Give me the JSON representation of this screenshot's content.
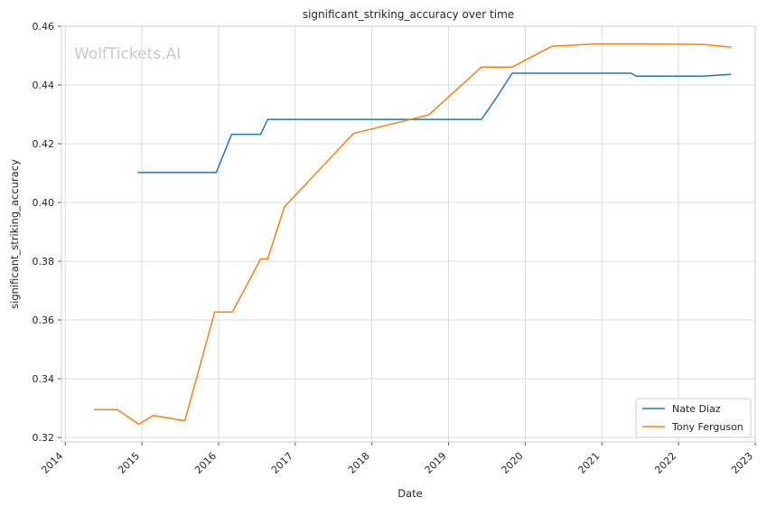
{
  "chart_data": {
    "type": "line",
    "title": "significant_striking_accuracy over time",
    "xlabel": "Date",
    "ylabel": "significant_striking_accuracy",
    "watermark": "WolfTickets.AI",
    "xlim": [
      2013.95,
      2023.0
    ],
    "ylim": [
      0.3185,
      0.46
    ],
    "x_ticks": [
      2014,
      2015,
      2016,
      2017,
      2018,
      2019,
      2020,
      2021,
      2022,
      2023
    ],
    "x_tick_labels": [
      "2014",
      "2015",
      "2016",
      "2017",
      "2018",
      "2019",
      "2020",
      "2021",
      "2022",
      "2023"
    ],
    "y_ticks": [
      0.32,
      0.34,
      0.36,
      0.38,
      0.4,
      0.42,
      0.44,
      0.46
    ],
    "y_tick_labels": [
      "0.32",
      "0.34",
      "0.36",
      "0.38",
      "0.40",
      "0.42",
      "0.44",
      "0.46"
    ],
    "grid": true,
    "legend_position": "bottom-right",
    "series": [
      {
        "name": "Nate Diaz",
        "color": "#1f77b4",
        "points": [
          [
            2014.95,
            0.4102
          ],
          [
            2015.97,
            0.4102
          ],
          [
            2016.17,
            0.4232
          ],
          [
            2016.55,
            0.4232
          ],
          [
            2016.64,
            0.4283
          ],
          [
            2019.43,
            0.4283
          ],
          [
            2019.62,
            0.4355
          ],
          [
            2019.83,
            0.444
          ],
          [
            2021.38,
            0.444
          ],
          [
            2021.45,
            0.443
          ],
          [
            2022.33,
            0.443
          ],
          [
            2022.49,
            0.4433
          ],
          [
            2022.68,
            0.4436
          ]
        ]
      },
      {
        "name": "Tony Ferguson",
        "color": "#ff7f0e",
        "points": [
          [
            2014.38,
            0.3295
          ],
          [
            2014.68,
            0.3295
          ],
          [
            2014.96,
            0.3245
          ],
          [
            2015.15,
            0.3275
          ],
          [
            2015.56,
            0.3257
          ],
          [
            2015.95,
            0.3627
          ],
          [
            2016.18,
            0.3627
          ],
          [
            2016.55,
            0.3808
          ],
          [
            2016.64,
            0.3808
          ],
          [
            2016.86,
            0.3985
          ],
          [
            2017.76,
            0.4235
          ],
          [
            2018.74,
            0.4298
          ],
          [
            2019.43,
            0.4461
          ],
          [
            2019.83,
            0.4461
          ],
          [
            2020.35,
            0.4532
          ],
          [
            2020.95,
            0.454
          ],
          [
            2021.38,
            0.454
          ],
          [
            2022.33,
            0.4538
          ],
          [
            2022.68,
            0.4529
          ]
        ]
      }
    ]
  }
}
